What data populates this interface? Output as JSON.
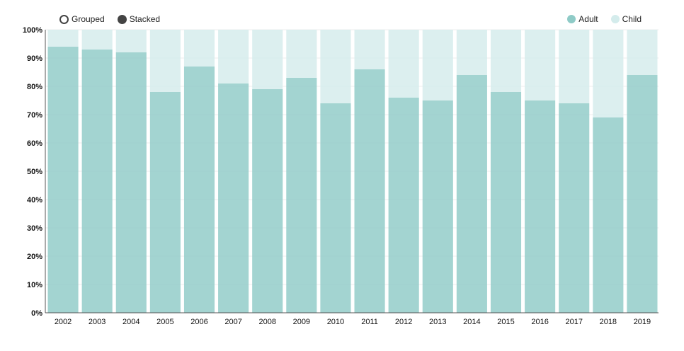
{
  "controls": {
    "grouped_label": "Grouped",
    "stacked_label": "Stacked",
    "selected": "stacked"
  },
  "legend": [
    {
      "name": "Adult",
      "color": "#8fcbc7"
    },
    {
      "name": "Child",
      "color": "#d4ecec"
    }
  ],
  "chart_data": {
    "type": "bar",
    "mode": "stacked",
    "normalized": true,
    "categories": [
      "2002",
      "2003",
      "2004",
      "2005",
      "2006",
      "2007",
      "2008",
      "2009",
      "2010",
      "2011",
      "2012",
      "2013",
      "2014",
      "2015",
      "2016",
      "2017",
      "2018",
      "2019"
    ],
    "series": [
      {
        "name": "Adult",
        "color": "#8fcbc7",
        "values": [
          94,
          93,
          92,
          78,
          87,
          81,
          79,
          83,
          74,
          86,
          76,
          75,
          84,
          78,
          75,
          74,
          69,
          84
        ]
      },
      {
        "name": "Child",
        "color": "#d4ecec",
        "values": [
          6,
          7,
          8,
          22,
          13,
          19,
          21,
          17,
          26,
          14,
          24,
          25,
          16,
          22,
          25,
          26,
          31,
          16
        ]
      }
    ],
    "ylim": [
      0,
      100
    ],
    "yticks": [
      "0%",
      "10%",
      "20%",
      "30%",
      "40%",
      "50%",
      "60%",
      "70%",
      "80%",
      "90%",
      "100%"
    ],
    "grid": true,
    "legend_position": "top-right"
  }
}
